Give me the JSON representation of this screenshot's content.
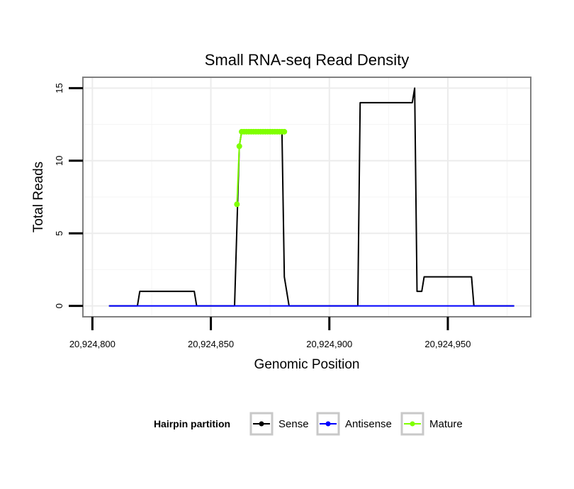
{
  "chart_data": {
    "type": "line",
    "title": "Small RNA-seq Read Density",
    "xlabel": "Genomic Position",
    "ylabel": "Total Reads",
    "xlim": [
      20924796,
      20924985
    ],
    "ylim": [
      -0.75,
      15.75
    ],
    "x_ticks": [
      20924800,
      20924850,
      20924900,
      20924950
    ],
    "x_tick_labels": [
      "20,924,800",
      "20,924,850",
      "20,924,900",
      "20,924,950"
    ],
    "y_ticks": [
      0,
      5,
      10,
      15
    ],
    "y_tick_labels": [
      "0",
      "5",
      "10",
      "15"
    ],
    "legend": {
      "title": "Hairpin partition",
      "position": "bottom",
      "entries": [
        {
          "name": "Sense",
          "color": "#000000"
        },
        {
          "name": "Antisense",
          "color": "#0000ff"
        },
        {
          "name": "Mature",
          "color": "#7fff00"
        }
      ]
    },
    "series": [
      {
        "name": "Sense",
        "color": "#000000",
        "style": "line",
        "x": [
          20924807,
          20924819,
          20924820,
          20924843,
          20924844,
          20924860,
          20924862,
          20924863,
          20924880,
          20924881,
          20924883,
          20924912,
          20924913,
          20924935,
          20924936,
          20924937,
          20924939,
          20924940,
          20924950,
          20924955,
          20924960,
          20924961,
          20924978
        ],
        "values": [
          0,
          0,
          1,
          1,
          0,
          0,
          11,
          12,
          12,
          2,
          0,
          0,
          14,
          14,
          15,
          1,
          1,
          2,
          2,
          2,
          2,
          0,
          0
        ]
      },
      {
        "name": "Antisense",
        "color": "#0000ff",
        "style": "line",
        "x": [
          20924807,
          20924978
        ],
        "values": [
          0,
          0
        ]
      },
      {
        "name": "Mature",
        "color": "#7fff00",
        "style": "points",
        "x": [
          20924861,
          20924862,
          20924863,
          20924864,
          20924865,
          20924866,
          20924867,
          20924868,
          20924869,
          20924870,
          20924871,
          20924872,
          20924873,
          20924874,
          20924875,
          20924876,
          20924877,
          20924878,
          20924879,
          20924880,
          20924881
        ],
        "values": [
          7,
          11,
          12,
          12,
          12,
          12,
          12,
          12,
          12,
          12,
          12,
          12,
          12,
          12,
          12,
          12,
          12,
          12,
          12,
          12,
          12
        ]
      }
    ]
  }
}
